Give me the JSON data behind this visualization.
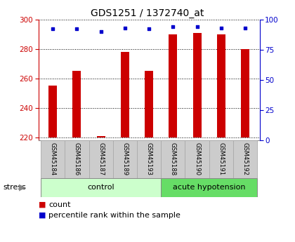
{
  "title": "GDS1251 / 1372740_at",
  "samples": [
    "GSM45184",
    "GSM45186",
    "GSM45187",
    "GSM45189",
    "GSM45193",
    "GSM45188",
    "GSM45190",
    "GSM45191",
    "GSM45192"
  ],
  "counts": [
    255,
    265,
    221,
    278,
    265,
    290,
    291,
    290,
    280
  ],
  "percentiles": [
    92,
    92,
    90,
    93,
    92,
    94,
    94,
    93,
    93
  ],
  "groups": [
    "control",
    "control",
    "control",
    "control",
    "control",
    "acute hypotension",
    "acute hypotension",
    "acute hypotension",
    "acute hypotension"
  ],
  "control_color": "#ccffcc",
  "hypo_color": "#66dd66",
  "ylim_left": [
    218,
    300
  ],
  "ylim_right": [
    0,
    100
  ],
  "yticks_left": [
    220,
    240,
    260,
    280,
    300
  ],
  "yticks_right": [
    0,
    25,
    50,
    75,
    100
  ],
  "bar_color": "#cc0000",
  "dot_color": "#0000cc",
  "bar_bottom": 220,
  "title_fontsize": 10,
  "axis_color_left": "#cc0000",
  "axis_color_right": "#0000cc",
  "bar_width": 0.35
}
